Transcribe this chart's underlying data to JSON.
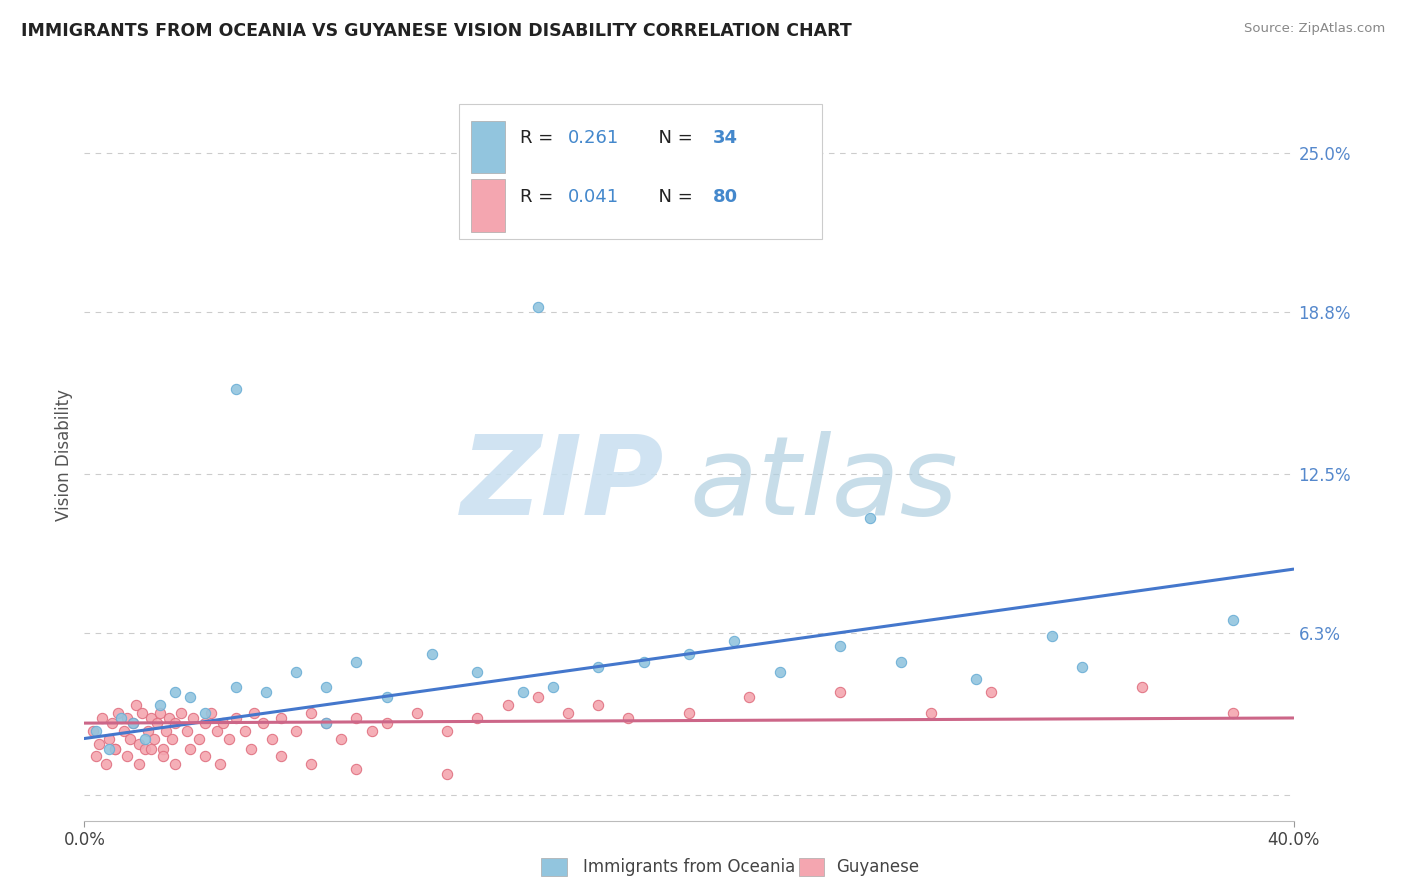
{
  "title": "IMMIGRANTS FROM OCEANIA VS GUYANESE VISION DISABILITY CORRELATION CHART",
  "source": "Source: ZipAtlas.com",
  "ylabel": "Vision Disability",
  "yticks": [
    0.0,
    0.063,
    0.125,
    0.188,
    0.25
  ],
  "ytick_labels": [
    "",
    "6.3%",
    "12.5%",
    "18.8%",
    "25.0%"
  ],
  "xlim": [
    0.0,
    0.4
  ],
  "ylim": [
    -0.01,
    0.275
  ],
  "series1_label": "Immigrants from Oceania",
  "series1_color": "#92c5de",
  "series1_edge": "#6baed6",
  "series2_label": "Guyanese",
  "series2_color": "#f4a6b0",
  "series2_edge": "#e07080",
  "legend_color": "#4488cc",
  "trend1_color": "#4477cc",
  "trend2_color": "#cc6688",
  "background_color": "#ffffff",
  "grid_color": "#cccccc",
  "watermark_zip_color": "#c8dff0",
  "watermark_atlas_color": "#b0cfe0",
  "scatter1_x": [
    0.004,
    0.008,
    0.012,
    0.016,
    0.02,
    0.025,
    0.03,
    0.035,
    0.04,
    0.05,
    0.06,
    0.07,
    0.08,
    0.09,
    0.1,
    0.115,
    0.13,
    0.145,
    0.155,
    0.17,
    0.185,
    0.2,
    0.215,
    0.23,
    0.25,
    0.27,
    0.295,
    0.32,
    0.15,
    0.38,
    0.05,
    0.08,
    0.33,
    0.26
  ],
  "scatter1_y": [
    0.025,
    0.018,
    0.03,
    0.028,
    0.022,
    0.035,
    0.04,
    0.038,
    0.032,
    0.042,
    0.04,
    0.048,
    0.042,
    0.052,
    0.038,
    0.055,
    0.048,
    0.04,
    0.042,
    0.05,
    0.052,
    0.055,
    0.06,
    0.048,
    0.058,
    0.052,
    0.045,
    0.062,
    0.19,
    0.068,
    0.158,
    0.028,
    0.05,
    0.108
  ],
  "scatter2_x": [
    0.003,
    0.005,
    0.006,
    0.008,
    0.009,
    0.01,
    0.011,
    0.013,
    0.014,
    0.015,
    0.016,
    0.017,
    0.018,
    0.019,
    0.02,
    0.021,
    0.022,
    0.023,
    0.024,
    0.025,
    0.026,
    0.027,
    0.028,
    0.029,
    0.03,
    0.032,
    0.034,
    0.036,
    0.038,
    0.04,
    0.042,
    0.044,
    0.046,
    0.048,
    0.05,
    0.053,
    0.056,
    0.059,
    0.062,
    0.065,
    0.07,
    0.075,
    0.08,
    0.085,
    0.09,
    0.095,
    0.1,
    0.11,
    0.12,
    0.13,
    0.14,
    0.15,
    0.16,
    0.17,
    0.18,
    0.2,
    0.22,
    0.25,
    0.28,
    0.3,
    0.35,
    0.38,
    0.004,
    0.007,
    0.01,
    0.014,
    0.018,
    0.022,
    0.026,
    0.03,
    0.035,
    0.04,
    0.045,
    0.055,
    0.065,
    0.075,
    0.09,
    0.12
  ],
  "scatter2_y": [
    0.025,
    0.02,
    0.03,
    0.022,
    0.028,
    0.018,
    0.032,
    0.025,
    0.03,
    0.022,
    0.028,
    0.035,
    0.02,
    0.032,
    0.018,
    0.025,
    0.03,
    0.022,
    0.028,
    0.032,
    0.018,
    0.025,
    0.03,
    0.022,
    0.028,
    0.032,
    0.025,
    0.03,
    0.022,
    0.028,
    0.032,
    0.025,
    0.028,
    0.022,
    0.03,
    0.025,
    0.032,
    0.028,
    0.022,
    0.03,
    0.025,
    0.032,
    0.028,
    0.022,
    0.03,
    0.025,
    0.028,
    0.032,
    0.025,
    0.03,
    0.035,
    0.038,
    0.032,
    0.035,
    0.03,
    0.032,
    0.038,
    0.04,
    0.032,
    0.04,
    0.042,
    0.032,
    0.015,
    0.012,
    0.018,
    0.015,
    0.012,
    0.018,
    0.015,
    0.012,
    0.018,
    0.015,
    0.012,
    0.018,
    0.015,
    0.012,
    0.01,
    0.008
  ],
  "trend1_x": [
    0.0,
    0.4
  ],
  "trend1_y": [
    0.022,
    0.088
  ],
  "trend2_x": [
    0.0,
    0.4
  ],
  "trend2_y": [
    0.028,
    0.03
  ]
}
